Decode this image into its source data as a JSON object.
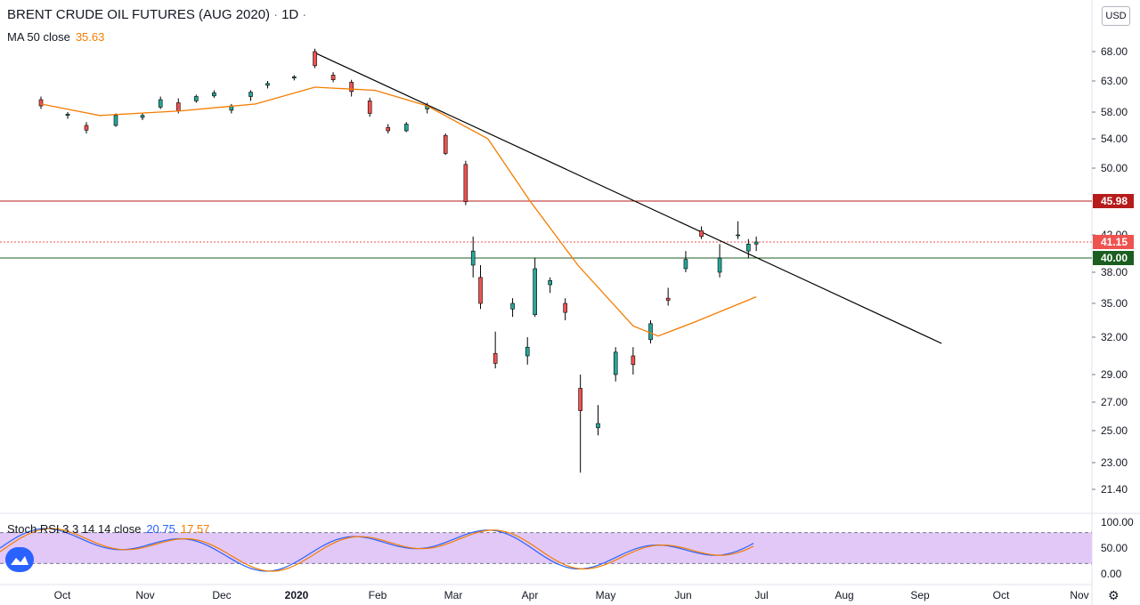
{
  "header": {
    "symbol": "BRENT CRUDE OIL FUTURES (AUG 2020)",
    "interval": "1D",
    "more_dot": "·"
  },
  "ma": {
    "label": "MA 50 close",
    "value": "35.63",
    "color": "#f57c00"
  },
  "stoch": {
    "label": "Stoch RSI 3 3 14 14 close",
    "k_value": "20.75",
    "d_value": "17.57",
    "k_color": "#2962ff",
    "d_color": "#f57c00"
  },
  "currency": "USD",
  "colors": {
    "up": "#26a69a",
    "down": "#ef5350",
    "resistance": "#b71c1c",
    "support": "#1b5e20",
    "trend": "#000000"
  },
  "chart_data": {
    "type": "candlestick",
    "title": "BRENT CRUDE OIL FUTURES (AUG 2020)",
    "x_months": [
      "Oct",
      "Nov",
      "Dec",
      "2020",
      "Feb",
      "Mar",
      "Apr",
      "May",
      "Jun",
      "Jul",
      "Aug",
      "Sep",
      "Oct",
      "Nov"
    ],
    "price_ticks": [
      "68.00",
      "63.00",
      "58.00",
      "54.00",
      "50.00",
      "42.00",
      "38.00",
      "35.00",
      "32.00",
      "29.00",
      "27.00",
      "25.00",
      "23.00",
      "21.40"
    ],
    "stoch_ticks": [
      "100.00",
      "50.00",
      "0.00"
    ],
    "price_labels": [
      {
        "text": "45.98",
        "value": 45.98,
        "color": "#b71c1c"
      },
      {
        "text": "41.15",
        "value": 41.15,
        "color": "#ef5350"
      },
      {
        "text": "40.00",
        "value": 40.0,
        "color": "#1b5e20"
      }
    ],
    "horizontal_lines": [
      45.98,
      40.0
    ],
    "last_price_line": 41.15,
    "trendline": [
      {
        "date": "2020-01-08",
        "value": 67.8
      },
      {
        "date": "2020-09-09",
        "value": 31.5
      }
    ],
    "stoch_bands": [
      80,
      20
    ],
    "ohlc_daily_approx": [
      [
        "2019-09-23",
        60.0,
        60.5,
        58.5,
        59.0
      ],
      [
        "2019-10-03",
        57.5,
        58.0,
        57.0,
        57.7
      ],
      [
        "2019-10-10",
        56.0,
        56.5,
        54.8,
        55.3
      ],
      [
        "2019-10-21",
        56.0,
        57.8,
        55.8,
        57.5
      ],
      [
        "2019-10-31",
        57.2,
        57.8,
        56.8,
        57.5
      ],
      [
        "2019-11-07",
        58.8,
        60.5,
        58.5,
        60.0
      ],
      [
        "2019-11-14",
        59.5,
        60.2,
        57.8,
        58.2
      ],
      [
        "2019-11-21",
        59.8,
        60.8,
        59.5,
        60.5
      ],
      [
        "2019-11-28",
        60.6,
        61.5,
        60.3,
        61.1
      ],
      [
        "2019-12-05",
        58.3,
        59.3,
        57.8,
        59.0
      ],
      [
        "2019-12-13",
        60.5,
        61.5,
        59.8,
        61.2
      ],
      [
        "2019-12-20",
        62.3,
        63.0,
        61.8,
        62.6
      ],
      [
        "2019-12-31",
        63.5,
        64.0,
        63.1,
        63.7
      ],
      [
        "2020-01-08",
        68.0,
        68.5,
        65.2,
        65.6
      ],
      [
        "2020-01-15",
        64.0,
        64.5,
        62.8,
        63.2
      ],
      [
        "2020-01-22",
        62.8,
        63.2,
        60.5,
        61.3
      ],
      [
        "2020-01-29",
        59.8,
        60.3,
        57.3,
        57.8
      ],
      [
        "2020-02-05",
        55.7,
        56.2,
        54.8,
        55.2
      ],
      [
        "2020-02-12",
        55.2,
        56.5,
        55.0,
        56.2
      ],
      [
        "2020-02-20",
        58.5,
        59.5,
        57.8,
        59.0
      ],
      [
        "2020-02-27",
        54.5,
        54.8,
        51.8,
        52.0
      ],
      [
        "2020-03-06",
        50.5,
        51.0,
        45.5,
        45.9
      ],
      [
        "2020-03-09",
        39.0,
        41.8,
        37.5,
        40.5
      ],
      [
        "2020-03-12",
        37.5,
        39.0,
        34.5,
        35.0
      ],
      [
        "2020-03-18",
        30.7,
        32.5,
        29.5,
        29.9
      ],
      [
        "2020-03-25",
        34.5,
        35.5,
        33.8,
        35.0
      ],
      [
        "2020-03-31",
        30.5,
        32.0,
        29.8,
        31.2
      ],
      [
        "2020-04-03",
        34.0,
        40.0,
        33.8,
        38.5
      ],
      [
        "2020-04-09",
        36.8,
        37.5,
        36.0,
        37.2
      ],
      [
        "2020-04-15",
        35.0,
        35.5,
        33.5,
        34.2
      ],
      [
        "2020-04-21",
        28.0,
        29.0,
        22.4,
        26.4
      ],
      [
        "2020-04-28",
        25.2,
        26.8,
        24.7,
        25.5
      ],
      [
        "2020-05-05",
        29.0,
        31.2,
        28.5,
        30.8
      ],
      [
        "2020-05-12",
        30.5,
        31.2,
        29.0,
        29.8
      ],
      [
        "2020-05-19",
        31.8,
        33.5,
        31.5,
        33.2
      ],
      [
        "2020-05-26",
        35.5,
        36.5,
        34.8,
        35.3
      ],
      [
        "2020-06-02",
        38.5,
        40.5,
        38.0,
        39.8
      ],
      [
        "2020-06-08",
        42.5,
        43.0,
        41.5,
        41.8
      ],
      [
        "2020-06-15",
        38.0,
        41.0,
        37.5,
        40.0
      ],
      [
        "2020-06-22",
        42.0,
        43.6,
        41.5,
        42.0
      ],
      [
        "2020-06-26",
        40.5,
        41.5,
        40.0,
        41.0
      ],
      [
        "2020-06-29",
        41.0,
        41.8,
        40.5,
        41.15
      ]
    ],
    "ma50_approx": [
      [
        "2019-09-23",
        59.3
      ],
      [
        "2019-10-15",
        57.5
      ],
      [
        "2019-11-15",
        58.2
      ],
      [
        "2019-12-15",
        59.3
      ],
      [
        "2020-01-08",
        62.0
      ],
      [
        "2020-01-31",
        61.5
      ],
      [
        "2020-02-20",
        59.0
      ],
      [
        "2020-03-15",
        54.0
      ],
      [
        "2020-04-01",
        46.0
      ],
      [
        "2020-04-20",
        39.0
      ],
      [
        "2020-05-12",
        33.0
      ],
      [
        "2020-05-22",
        32.1
      ],
      [
        "2020-06-05",
        33.3
      ],
      [
        "2020-06-29",
        35.63
      ]
    ]
  }
}
